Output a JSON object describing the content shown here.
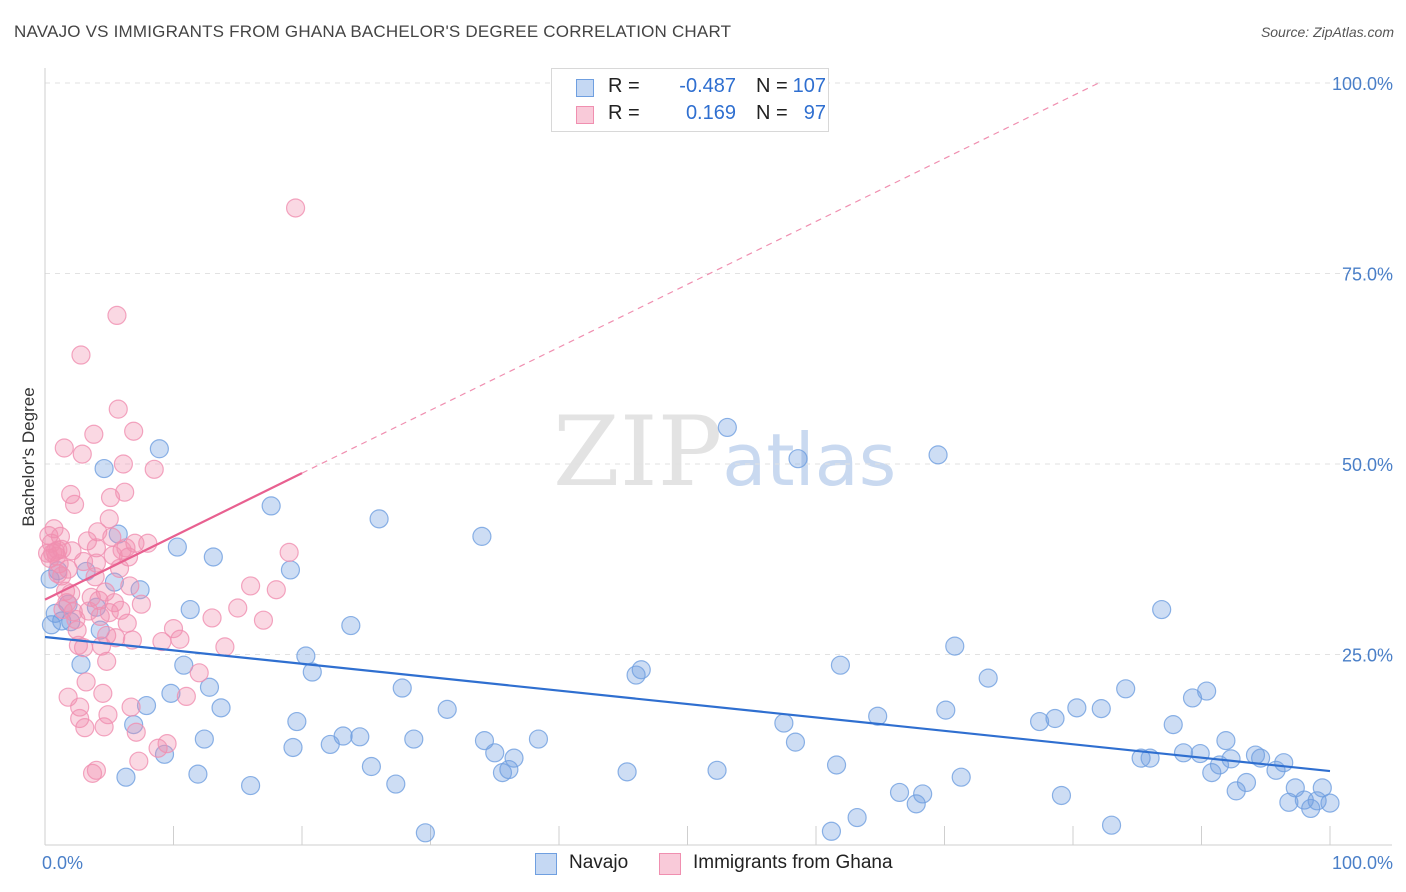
{
  "header": {
    "title": "NAVAJO VS IMMIGRANTS FROM GHANA BACHELOR'S DEGREE CORRELATION CHART",
    "source": "Source: ZipAtlas.com"
  },
  "watermark": {
    "zip": "ZIP",
    "atlas": "atlas"
  },
  "legend": {
    "rows": [
      {
        "r_label": "R =",
        "r_value": "-0.487",
        "n_label": "N =",
        "n_value": "107"
      },
      {
        "r_label": "R =",
        "r_value": "0.169",
        "n_label": "N =",
        "n_value": "97"
      }
    ]
  },
  "series_legend": [
    {
      "label": "Navajo"
    },
    {
      "label": "Immigrants from Ghana"
    }
  ],
  "chart_data": {
    "type": "scatter",
    "title": "NAVAJO VS IMMIGRANTS FROM GHANA BACHELOR'S DEGREE CORRELATION CHART",
    "xlabel": "",
    "ylabel": "Bachelor's Degree",
    "xlim": [
      0,
      100
    ],
    "ylim": [
      0,
      100
    ],
    "x_tick_labels": [
      "0.0%",
      "100.0%"
    ],
    "y_ticks": [
      {
        "value": 25,
        "label": "25.0%"
      },
      {
        "value": 50,
        "label": "50.0%"
      },
      {
        "value": 75,
        "label": "75.0%"
      },
      {
        "value": 100,
        "label": "100.0%"
      }
    ],
    "grid": true,
    "legend_position": "top-center",
    "colors": {
      "navajo": "#6f9fe0",
      "navajo_line": "#2f6fd0",
      "ghana": "#f08fb0",
      "ghana_line": "#e86090"
    },
    "series": [
      {
        "name": "Navajo",
        "trend": {
          "x": [
            0,
            100
          ],
          "y": [
            27.3,
            9.7
          ],
          "dashed": false
        },
        "points": [
          [
            0.4,
            34.9
          ],
          [
            0.5,
            28.9
          ],
          [
            0.8,
            30.4
          ],
          [
            1.0,
            36.0
          ],
          [
            1.3,
            29.4
          ],
          [
            1.8,
            31.6
          ],
          [
            2.0,
            29.3
          ],
          [
            2.8,
            23.7
          ],
          [
            3.2,
            35.9
          ],
          [
            4.0,
            31.2
          ],
          [
            4.3,
            28.2
          ],
          [
            4.6,
            49.4
          ],
          [
            5.4,
            34.5
          ],
          [
            5.7,
            40.8
          ],
          [
            6.3,
            8.9
          ],
          [
            6.9,
            15.8
          ],
          [
            7.4,
            33.5
          ],
          [
            7.9,
            18.3
          ],
          [
            8.9,
            52.0
          ],
          [
            9.3,
            11.9
          ],
          [
            9.8,
            19.9
          ],
          [
            10.3,
            39.1
          ],
          [
            10.8,
            23.6
          ],
          [
            11.3,
            30.9
          ],
          [
            11.9,
            9.3
          ],
          [
            12.4,
            13.9
          ],
          [
            12.8,
            20.7
          ],
          [
            13.1,
            37.8
          ],
          [
            13.7,
            18.0
          ],
          [
            16.0,
            7.8
          ],
          [
            17.6,
            44.5
          ],
          [
            19.1,
            36.1
          ],
          [
            19.3,
            12.8
          ],
          [
            19.6,
            16.2
          ],
          [
            20.3,
            24.8
          ],
          [
            20.8,
            22.7
          ],
          [
            22.2,
            13.2
          ],
          [
            23.2,
            14.3
          ],
          [
            23.8,
            28.8
          ],
          [
            24.5,
            14.2
          ],
          [
            25.4,
            10.3
          ],
          [
            26.0,
            42.8
          ],
          [
            27.3,
            8.0
          ],
          [
            27.8,
            20.6
          ],
          [
            28.7,
            13.9
          ],
          [
            29.6,
            1.6
          ],
          [
            31.3,
            17.8
          ],
          [
            34.0,
            40.5
          ],
          [
            34.2,
            13.7
          ],
          [
            35.0,
            12.1
          ],
          [
            35.6,
            9.5
          ],
          [
            36.1,
            9.9
          ],
          [
            36.5,
            11.4
          ],
          [
            38.4,
            13.9
          ],
          [
            45.3,
            9.6
          ],
          [
            46.0,
            22.3
          ],
          [
            46.4,
            23.0
          ],
          [
            52.3,
            9.8
          ],
          [
            53.1,
            54.8
          ],
          [
            57.5,
            16.0
          ],
          [
            58.4,
            13.5
          ],
          [
            58.6,
            50.7
          ],
          [
            61.2,
            1.8
          ],
          [
            61.6,
            10.5
          ],
          [
            61.9,
            23.6
          ],
          [
            63.2,
            3.6
          ],
          [
            64.8,
            16.9
          ],
          [
            66.5,
            6.9
          ],
          [
            67.8,
            5.4
          ],
          [
            68.3,
            6.7
          ],
          [
            69.5,
            51.2
          ],
          [
            70.1,
            17.7
          ],
          [
            70.8,
            26.1
          ],
          [
            71.3,
            8.9
          ],
          [
            73.4,
            21.9
          ],
          [
            77.4,
            16.2
          ],
          [
            78.6,
            16.6
          ],
          [
            79.1,
            6.5
          ],
          [
            80.3,
            18.0
          ],
          [
            82.2,
            17.9
          ],
          [
            83.0,
            2.6
          ],
          [
            84.1,
            20.5
          ],
          [
            85.3,
            11.4
          ],
          [
            86.0,
            11.4
          ],
          [
            86.9,
            30.9
          ],
          [
            87.8,
            15.8
          ],
          [
            88.6,
            12.1
          ],
          [
            89.3,
            19.3
          ],
          [
            89.9,
            12.0
          ],
          [
            90.4,
            20.2
          ],
          [
            90.8,
            9.5
          ],
          [
            91.4,
            10.5
          ],
          [
            91.9,
            13.7
          ],
          [
            92.3,
            11.3
          ],
          [
            92.7,
            7.1
          ],
          [
            93.5,
            8.2
          ],
          [
            94.2,
            11.8
          ],
          [
            94.6,
            11.4
          ],
          [
            95.8,
            9.8
          ],
          [
            96.4,
            10.8
          ],
          [
            96.8,
            5.6
          ],
          [
            97.3,
            7.5
          ],
          [
            98.0,
            5.9
          ],
          [
            98.5,
            4.8
          ],
          [
            99.0,
            5.8
          ],
          [
            99.4,
            7.5
          ],
          [
            100.0,
            5.5
          ]
        ]
      },
      {
        "name": "Immigrants from Ghana",
        "trend": {
          "x": [
            0,
            20
          ],
          "y": [
            32.2,
            48.8
          ],
          "dashed": false,
          "extension": {
            "x": [
              20,
              82
            ],
            "y": [
              48.8,
              100
            ]
          }
        },
        "points": [
          [
            0.2,
            38.3
          ],
          [
            0.3,
            40.6
          ],
          [
            0.4,
            37.6
          ],
          [
            0.5,
            39.6
          ],
          [
            0.6,
            38.3
          ],
          [
            0.7,
            41.5
          ],
          [
            0.8,
            38.5
          ],
          [
            0.9,
            37.9
          ],
          [
            1.0,
            38.7
          ],
          [
            1.1,
            36.9
          ],
          [
            1.2,
            40.5
          ],
          [
            1.3,
            35.3
          ],
          [
            1.3,
            38.8
          ],
          [
            1.4,
            30.9
          ],
          [
            1.5,
            52.1
          ],
          [
            1.6,
            33.3
          ],
          [
            1.7,
            31.8
          ],
          [
            1.8,
            36.2
          ],
          [
            1.8,
            19.4
          ],
          [
            2.0,
            46.0
          ],
          [
            2.1,
            38.6
          ],
          [
            2.2,
            30.6
          ],
          [
            2.3,
            44.7
          ],
          [
            2.4,
            29.6
          ],
          [
            2.5,
            28.2
          ],
          [
            2.6,
            26.2
          ],
          [
            2.7,
            18.1
          ],
          [
            2.7,
            16.6
          ],
          [
            2.8,
            64.3
          ],
          [
            2.9,
            51.3
          ],
          [
            3.0,
            25.9
          ],
          [
            3.1,
            15.4
          ],
          [
            3.2,
            21.4
          ],
          [
            3.3,
            39.9
          ],
          [
            3.4,
            30.7
          ],
          [
            3.6,
            32.5
          ],
          [
            3.7,
            9.4
          ],
          [
            3.8,
            53.9
          ],
          [
            3.9,
            35.2
          ],
          [
            4.0,
            37.0
          ],
          [
            4.0,
            9.8
          ],
          [
            4.1,
            41.1
          ],
          [
            4.2,
            32.1
          ],
          [
            4.3,
            30.0
          ],
          [
            4.4,
            26.1
          ],
          [
            4.5,
            19.9
          ],
          [
            4.6,
            15.5
          ],
          [
            4.7,
            33.2
          ],
          [
            4.8,
            27.5
          ],
          [
            4.8,
            24.1
          ],
          [
            4.9,
            17.1
          ],
          [
            5.0,
            42.8
          ],
          [
            5.1,
            45.6
          ],
          [
            5.2,
            40.4
          ],
          [
            5.3,
            38.0
          ],
          [
            5.4,
            31.8
          ],
          [
            5.5,
            27.2
          ],
          [
            5.6,
            69.5
          ],
          [
            5.7,
            57.2
          ],
          [
            5.8,
            36.3
          ],
          [
            5.9,
            30.8
          ],
          [
            6.0,
            38.7
          ],
          [
            6.1,
            50.0
          ],
          [
            6.2,
            46.3
          ],
          [
            6.3,
            39.0
          ],
          [
            6.4,
            29.1
          ],
          [
            6.5,
            37.8
          ],
          [
            6.6,
            34.0
          ],
          [
            6.7,
            18.1
          ],
          [
            6.8,
            26.9
          ],
          [
            6.9,
            54.3
          ],
          [
            7.0,
            39.6
          ],
          [
            7.1,
            14.8
          ],
          [
            7.3,
            11.0
          ],
          [
            7.5,
            31.6
          ],
          [
            8.0,
            39.6
          ],
          [
            8.5,
            49.3
          ],
          [
            8.8,
            12.7
          ],
          [
            9.1,
            26.7
          ],
          [
            9.5,
            13.3
          ],
          [
            10.0,
            28.4
          ],
          [
            10.5,
            27.0
          ],
          [
            11.0,
            19.5
          ],
          [
            12.0,
            22.6
          ],
          [
            13.0,
            29.8
          ],
          [
            14.0,
            26.0
          ],
          [
            15.0,
            31.1
          ],
          [
            16.0,
            34.0
          ],
          [
            17.0,
            29.5
          ],
          [
            18.0,
            33.5
          ],
          [
            19.0,
            38.4
          ],
          [
            19.5,
            83.6
          ],
          [
            1.0,
            35.6
          ],
          [
            2.0,
            33.0
          ],
          [
            3.0,
            37.2
          ],
          [
            4.0,
            39.0
          ],
          [
            5.0,
            30.5
          ]
        ]
      }
    ]
  }
}
